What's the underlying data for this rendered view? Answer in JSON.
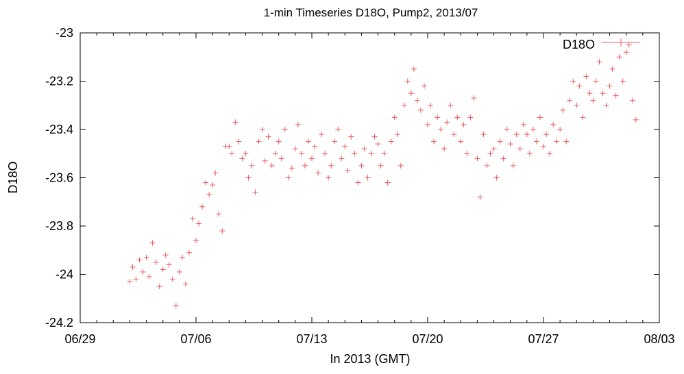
{
  "chart_data": {
    "type": "scatter",
    "title": "1-min Timeseries D18O, Pump2, 2013/07",
    "xlabel": "In 2013 (GMT)",
    "ylabel": "D18O",
    "xlim": [
      "2013-06-29",
      "2013-08-03"
    ],
    "ylim": [
      -24.2,
      -23.0
    ],
    "x_tick_labels": [
      "06/29",
      "07/06",
      "07/13",
      "07/20",
      "07/27",
      "08/03"
    ],
    "y_tick_labels": [
      "-23",
      "-23.2",
      "-23.4",
      "-23.6",
      "-23.8",
      "-24",
      "-24.2"
    ],
    "y_tick_values": [
      -23.0,
      -23.2,
      -23.4,
      -23.6,
      -23.8,
      -24.0,
      -24.2
    ],
    "grid": false,
    "legend_position": "top-right",
    "series": [
      {
        "name": "D18O",
        "marker": "+",
        "color": "#e8585a",
        "points": [
          [
            "2013-07-02T00",
            -24.03
          ],
          [
            "2013-07-02T04",
            -23.97
          ],
          [
            "2013-07-02T09",
            -24.02
          ],
          [
            "2013-07-02T14",
            -23.94
          ],
          [
            "2013-07-02T19",
            -23.99
          ],
          [
            "2013-07-03T00",
            -23.93
          ],
          [
            "2013-07-03T04",
            -24.01
          ],
          [
            "2013-07-03T09",
            -23.87
          ],
          [
            "2013-07-03T14",
            -23.95
          ],
          [
            "2013-07-03T19",
            -24.05
          ],
          [
            "2013-07-04T00",
            -23.98
          ],
          [
            "2013-07-04T04",
            -23.92
          ],
          [
            "2013-07-04T09",
            -23.96
          ],
          [
            "2013-07-04T14",
            -24.02
          ],
          [
            "2013-07-04T19",
            -24.13
          ],
          [
            "2013-07-05T00",
            -23.99
          ],
          [
            "2013-07-05T04",
            -23.93
          ],
          [
            "2013-07-05T09",
            -24.04
          ],
          [
            "2013-07-05T14",
            -23.91
          ],
          [
            "2013-07-05T19",
            -23.77
          ],
          [
            "2013-07-06T00",
            -23.86
          ],
          [
            "2013-07-06T04",
            -23.79
          ],
          [
            "2013-07-06T09",
            -23.72
          ],
          [
            "2013-07-06T14",
            -23.62
          ],
          [
            "2013-07-06T19",
            -23.67
          ],
          [
            "2013-07-07T00",
            -23.63
          ],
          [
            "2013-07-07T04",
            -23.58
          ],
          [
            "2013-07-07T09",
            -23.75
          ],
          [
            "2013-07-07T14",
            -23.82
          ],
          [
            "2013-07-07T19",
            -23.47
          ],
          [
            "2013-07-08T00",
            -23.47
          ],
          [
            "2013-07-08T04",
            -23.5
          ],
          [
            "2013-07-08T09",
            -23.37
          ],
          [
            "2013-07-08T14",
            -23.45
          ],
          [
            "2013-07-08T19",
            -23.52
          ],
          [
            "2013-07-09T00",
            -23.5
          ],
          [
            "2013-07-09T04",
            -23.6
          ],
          [
            "2013-07-09T09",
            -23.55
          ],
          [
            "2013-07-09T14",
            -23.66
          ],
          [
            "2013-07-09T19",
            -23.45
          ],
          [
            "2013-07-10T00",
            -23.4
          ],
          [
            "2013-07-10T04",
            -23.53
          ],
          [
            "2013-07-10T09",
            -23.43
          ],
          [
            "2013-07-10T14",
            -23.55
          ],
          [
            "2013-07-10T19",
            -23.5
          ],
          [
            "2013-07-11T00",
            -23.45
          ],
          [
            "2013-07-11T04",
            -23.52
          ],
          [
            "2013-07-11T09",
            -23.4
          ],
          [
            "2013-07-11T14",
            -23.6
          ],
          [
            "2013-07-11T19",
            -23.56
          ],
          [
            "2013-07-12T00",
            -23.48
          ],
          [
            "2013-07-12T04",
            -23.38
          ],
          [
            "2013-07-12T09",
            -23.5
          ],
          [
            "2013-07-12T14",
            -23.55
          ],
          [
            "2013-07-12T19",
            -23.45
          ],
          [
            "2013-07-13T00",
            -23.52
          ],
          [
            "2013-07-13T04",
            -23.47
          ],
          [
            "2013-07-13T09",
            -23.58
          ],
          [
            "2013-07-13T14",
            -23.42
          ],
          [
            "2013-07-13T19",
            -23.5
          ],
          [
            "2013-07-14T00",
            -23.6
          ],
          [
            "2013-07-14T04",
            -23.55
          ],
          [
            "2013-07-14T09",
            -23.45
          ],
          [
            "2013-07-14T14",
            -23.4
          ],
          [
            "2013-07-14T19",
            -23.52
          ],
          [
            "2013-07-15T00",
            -23.47
          ],
          [
            "2013-07-15T04",
            -23.57
          ],
          [
            "2013-07-15T09",
            -23.43
          ],
          [
            "2013-07-15T14",
            -23.5
          ],
          [
            "2013-07-15T19",
            -23.62
          ],
          [
            "2013-07-16T00",
            -23.55
          ],
          [
            "2013-07-16T04",
            -23.48
          ],
          [
            "2013-07-16T09",
            -23.6
          ],
          [
            "2013-07-16T14",
            -23.5
          ],
          [
            "2013-07-16T19",
            -23.43
          ],
          [
            "2013-07-17T00",
            -23.46
          ],
          [
            "2013-07-17T04",
            -23.55
          ],
          [
            "2013-07-17T09",
            -23.5
          ],
          [
            "2013-07-17T14",
            -23.62
          ],
          [
            "2013-07-17T19",
            -23.45
          ],
          [
            "2013-07-18T00",
            -23.35
          ],
          [
            "2013-07-18T04",
            -23.42
          ],
          [
            "2013-07-18T09",
            -23.55
          ],
          [
            "2013-07-18T14",
            -23.3
          ],
          [
            "2013-07-18T19",
            -23.2
          ],
          [
            "2013-07-19T00",
            -23.25
          ],
          [
            "2013-07-19T04",
            -23.15
          ],
          [
            "2013-07-19T09",
            -23.28
          ],
          [
            "2013-07-19T14",
            -23.32
          ],
          [
            "2013-07-19T19",
            -23.22
          ],
          [
            "2013-07-20T00",
            -23.38
          ],
          [
            "2013-07-20T04",
            -23.3
          ],
          [
            "2013-07-20T09",
            -23.45
          ],
          [
            "2013-07-20T14",
            -23.35
          ],
          [
            "2013-07-20T19",
            -23.4
          ],
          [
            "2013-07-21T00",
            -23.48
          ],
          [
            "2013-07-21T04",
            -23.37
          ],
          [
            "2013-07-21T09",
            -23.3
          ],
          [
            "2013-07-21T14",
            -23.42
          ],
          [
            "2013-07-21T19",
            -23.35
          ],
          [
            "2013-07-22T00",
            -23.45
          ],
          [
            "2013-07-22T04",
            -23.38
          ],
          [
            "2013-07-22T09",
            -23.5
          ],
          [
            "2013-07-22T14",
            -23.35
          ],
          [
            "2013-07-22T19",
            -23.27
          ],
          [
            "2013-07-23T00",
            -23.52
          ],
          [
            "2013-07-23T04",
            -23.68
          ],
          [
            "2013-07-23T09",
            -23.42
          ],
          [
            "2013-07-23T14",
            -23.55
          ],
          [
            "2013-07-23T19",
            -23.5
          ],
          [
            "2013-07-24T00",
            -23.48
          ],
          [
            "2013-07-24T04",
            -23.6
          ],
          [
            "2013-07-24T09",
            -23.45
          ],
          [
            "2013-07-24T14",
            -23.52
          ],
          [
            "2013-07-24T19",
            -23.4
          ],
          [
            "2013-07-25T00",
            -23.46
          ],
          [
            "2013-07-25T04",
            -23.55
          ],
          [
            "2013-07-25T09",
            -23.42
          ],
          [
            "2013-07-25T14",
            -23.48
          ],
          [
            "2013-07-25T19",
            -23.38
          ],
          [
            "2013-07-26T00",
            -23.42
          ],
          [
            "2013-07-26T04",
            -23.5
          ],
          [
            "2013-07-26T09",
            -23.4
          ],
          [
            "2013-07-26T14",
            -23.45
          ],
          [
            "2013-07-26T19",
            -23.35
          ],
          [
            "2013-07-27T00",
            -23.47
          ],
          [
            "2013-07-27T04",
            -23.42
          ],
          [
            "2013-07-27T09",
            -23.5
          ],
          [
            "2013-07-27T14",
            -23.38
          ],
          [
            "2013-07-27T19",
            -23.45
          ],
          [
            "2013-07-28T00",
            -23.4
          ],
          [
            "2013-07-28T04",
            -23.32
          ],
          [
            "2013-07-28T09",
            -23.45
          ],
          [
            "2013-07-28T14",
            -23.28
          ],
          [
            "2013-07-28T19",
            -23.2
          ],
          [
            "2013-07-29T00",
            -23.3
          ],
          [
            "2013-07-29T04",
            -23.22
          ],
          [
            "2013-07-29T09",
            -23.35
          ],
          [
            "2013-07-29T14",
            -23.18
          ],
          [
            "2013-07-29T19",
            -23.25
          ],
          [
            "2013-07-30T00",
            -23.28
          ],
          [
            "2013-07-30T04",
            -23.2
          ],
          [
            "2013-07-30T09",
            -23.12
          ],
          [
            "2013-07-30T14",
            -23.25
          ],
          [
            "2013-07-30T19",
            -23.3
          ],
          [
            "2013-07-31T00",
            -23.22
          ],
          [
            "2013-07-31T04",
            -23.15
          ],
          [
            "2013-07-31T09",
            -23.26
          ],
          [
            "2013-07-31T14",
            -23.1
          ],
          [
            "2013-07-31T19",
            -23.2
          ],
          [
            "2013-08-01T00",
            -23.08
          ],
          [
            "2013-08-01T04",
            -23.05
          ],
          [
            "2013-08-01T09",
            -23.28
          ],
          [
            "2013-08-01T14",
            -23.36
          ]
        ]
      }
    ]
  }
}
